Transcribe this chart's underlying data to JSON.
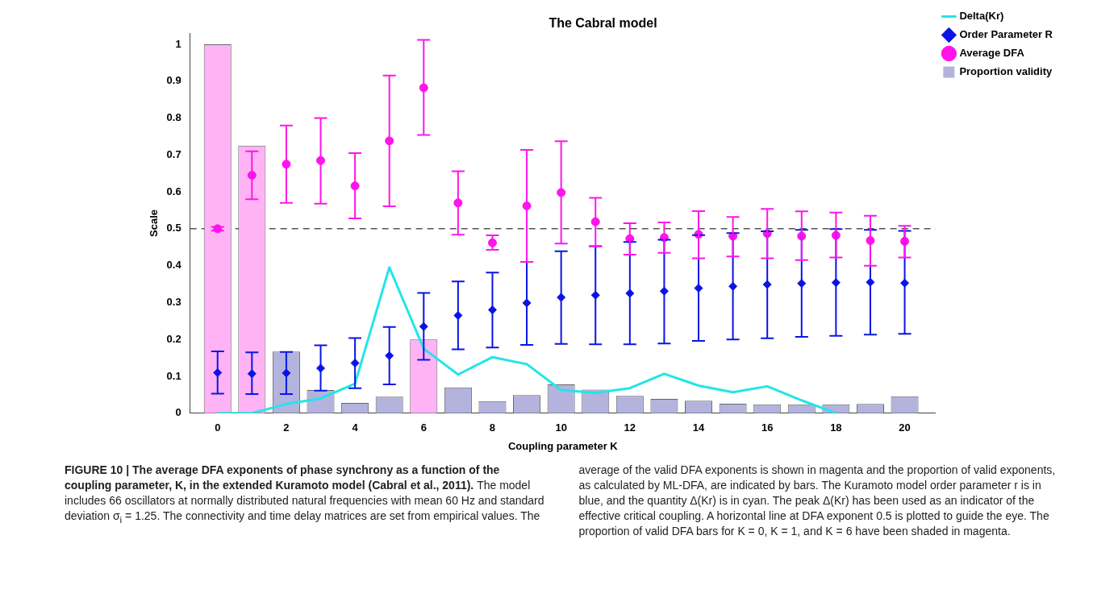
{
  "chart_data": {
    "type": "scatter",
    "title": "The Cabral model",
    "xlabel": "Coupling parameter K",
    "ylabel": "Scale",
    "x": [
      0,
      1,
      2,
      3,
      4,
      5,
      6,
      7,
      8,
      9,
      10,
      11,
      12,
      13,
      14,
      15,
      16,
      17,
      18,
      19,
      20
    ],
    "xlim": [
      -0.8,
      20.9
    ],
    "xticks": [
      0,
      2,
      4,
      6,
      8,
      10,
      12,
      14,
      16,
      18,
      20
    ],
    "ylim": [
      0,
      1.03
    ],
    "yticks": [
      0,
      0.1,
      0.2,
      0.3,
      0.4,
      0.5,
      0.6,
      0.7,
      0.8,
      0.9,
      1
    ],
    "grid": false,
    "legend": "top right",
    "series": [
      {
        "name": "Delta(Kr)",
        "type": "line",
        "color": "#22e5e8",
        "marker": "none",
        "values": [
          0,
          0,
          0.025,
          0.04,
          0.08,
          0.395,
          0.175,
          0.105,
          0.152,
          0.133,
          0.063,
          0.055,
          0.068,
          0.107,
          0.075,
          0.057,
          0.073,
          0.035,
          0,
          null,
          null
        ]
      },
      {
        "name": "Order Parameter R",
        "color": "#0a14e6",
        "marker": "diamond",
        "values": [
          0.11,
          0.107,
          0.109,
          0.122,
          0.136,
          0.156,
          0.235,
          0.265,
          0.28,
          0.299,
          0.314,
          0.32,
          0.325,
          0.331,
          0.339,
          0.344,
          0.349,
          0.352,
          0.354,
          0.355,
          0.353
        ],
        "errors": [
          [
            0.053,
            0.168
          ],
          [
            0.052,
            0.165
          ],
          [
            0.052,
            0.166
          ],
          [
            0.061,
            0.184
          ],
          [
            0.068,
            0.204
          ],
          [
            0.078,
            0.234
          ],
          [
            0.145,
            0.326
          ],
          [
            0.173,
            0.357
          ],
          [
            0.178,
            0.381
          ],
          [
            0.185,
            0.41
          ],
          [
            0.188,
            0.439
          ],
          [
            0.187,
            0.453
          ],
          [
            0.187,
            0.464
          ],
          [
            0.189,
            0.47
          ],
          [
            0.196,
            0.483
          ],
          [
            0.2,
            0.488
          ],
          [
            0.203,
            0.493
          ],
          [
            0.207,
            0.497
          ],
          [
            0.21,
            0.499
          ],
          [
            0.213,
            0.497
          ],
          [
            0.215,
            0.494
          ]
        ]
      },
      {
        "name": "Average DFA",
        "color": "#ff14ec",
        "marker": "circle",
        "values": [
          0.5,
          0.645,
          0.675,
          0.685,
          0.616,
          0.738,
          0.882,
          0.57,
          0.462,
          0.562,
          0.598,
          0.519,
          0.473,
          0.476,
          0.485,
          0.48,
          0.487,
          0.48,
          0.482,
          0.468,
          0.466
        ],
        "errors": [
          [
            0.495,
            0.505
          ],
          [
            0.58,
            0.71
          ],
          [
            0.57,
            0.78
          ],
          [
            0.568,
            0.8
          ],
          [
            0.528,
            0.705
          ],
          [
            0.561,
            0.915
          ],
          [
            0.754,
            1.012
          ],
          [
            0.484,
            0.656
          ],
          [
            0.443,
            0.482
          ],
          [
            0.41,
            0.714
          ],
          [
            0.46,
            0.737
          ],
          [
            0.452,
            0.584
          ],
          [
            0.43,
            0.515
          ],
          [
            0.435,
            0.517
          ],
          [
            0.42,
            0.548
          ],
          [
            0.425,
            0.532
          ],
          [
            0.42,
            0.554
          ],
          [
            0.415,
            0.547
          ],
          [
            0.422,
            0.544
          ],
          [
            0.4,
            0.535
          ],
          [
            0.422,
            0.508
          ]
        ]
      },
      {
        "name": "Proportion validity",
        "type": "bar",
        "color": "#b3b3dd",
        "values": [
          1,
          0.725,
          0.167,
          0.063,
          0.028,
          0.045,
          0.2,
          0.07,
          0.033,
          0.049,
          0.078,
          0.064,
          0.047,
          0.039,
          0.034,
          0.026,
          0.024,
          0.024,
          0.024,
          0.025,
          0.046
        ],
        "colors": [
          "#ffb3f5",
          "#ffb3f5",
          "#b3b3dd",
          "#b3b3dd",
          "#b3b3dd",
          "#b3b3dd",
          "#ffb3f5",
          "#b3b3dd",
          "#b3b3dd",
          "#b3b3dd",
          "#b3b3dd",
          "#b3b3dd",
          "#b3b3dd",
          "#b3b3dd",
          "#b3b3dd",
          "#b3b3dd",
          "#b3b3dd",
          "#b3b3dd",
          "#b3b3dd",
          "#b3b3dd",
          "#b3b3dd"
        ]
      }
    ],
    "ref_lines": [
      {
        "axis": "y",
        "value": 0.5,
        "color": "#555555",
        "line_style": "dashed"
      }
    ],
    "annotations": [
      "FIGURE 10 | The average DFA exponents of phase synchrony as a function of the coupling parameter, K, in the extended Kuramoto model (Cabral et al., 2011).",
      "The model includes 66 oscillators at normally distributed natural frequencies with mean 60 Hz and standard deviation σ$_{i}$ = 1.25. The connectivity and time delay matrices are set from empirical values. The average of the valid DFA exponents is shown in magenta and the proportion of valid exponents, as calculated by ML-DFA, are indicated by bars. The Kuramoto model order parameter r is in blue, and the quantity Δ(Kr) is in cyan. The peak Δ(Kr) has been used as an indicator of the effective critical coupling. A horizontal line at DFA exponent 0.5 is plotted to guide the eye. The proportion of valid DFA bars for K = 0, K = 1, and K = 6 have been shaded in magenta."
    ]
  }
}
